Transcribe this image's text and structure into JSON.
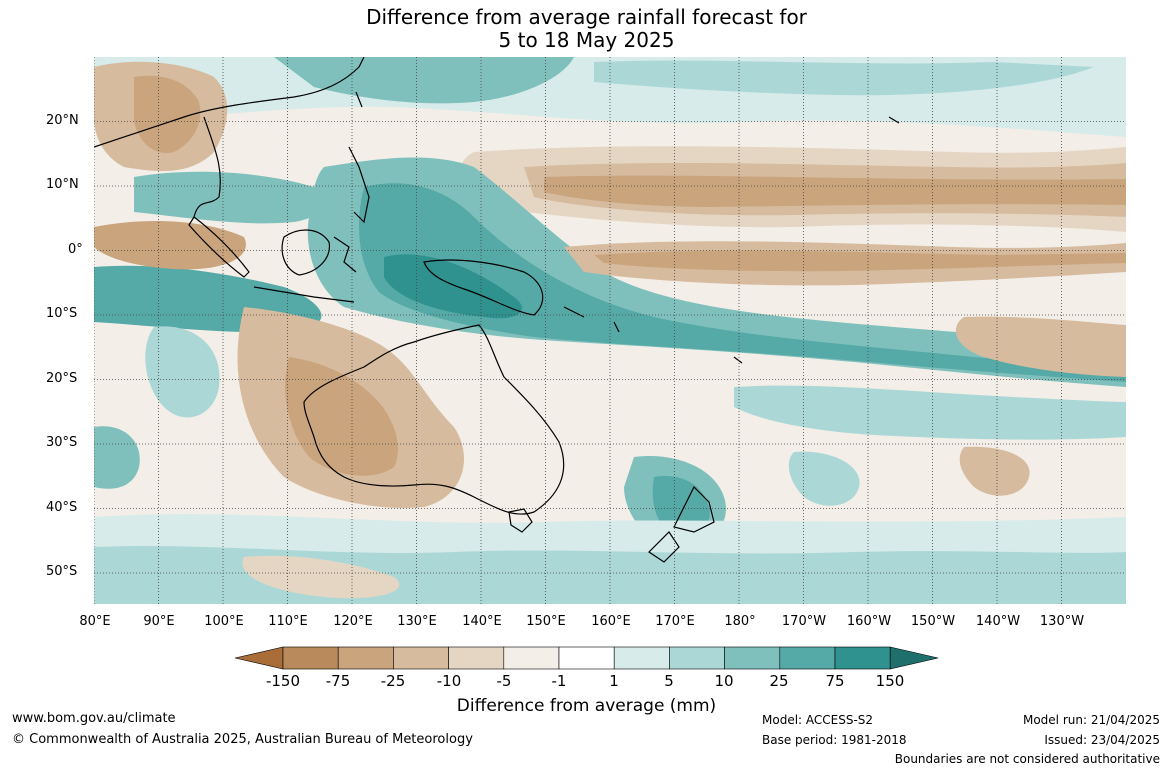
{
  "title": {
    "line1": "Difference from average rainfall forecast for",
    "line2": "5 to 18 May 2025"
  },
  "map": {
    "lat_labels": [
      "20°N",
      "10°N",
      "0°",
      "10°S",
      "20°S",
      "30°S",
      "40°S",
      "50°S"
    ],
    "lon_labels": [
      "80°E",
      "90°E",
      "100°E",
      "110°E",
      "120°E",
      "130°E",
      "140°E",
      "150°E",
      "160°E",
      "170°E",
      "180°",
      "170°W",
      "160°W",
      "150°W",
      "140°W",
      "130°W"
    ]
  },
  "legend": {
    "title": "Difference from average (mm)",
    "ticks": [
      "-150",
      "-75",
      "-25",
      "-10",
      "-5",
      "-1",
      "1",
      "5",
      "10",
      "25",
      "75",
      "150"
    ],
    "colors": [
      "#a86d39",
      "#b98a5b",
      "#c9a47d",
      "#d6bb9e",
      "#e5d6c4",
      "#f3eee8",
      "#ffffff",
      "#d6ebea",
      "#abd8d6",
      "#7fc0bd",
      "#55a9a6",
      "#2f928f",
      "#1f6f6c"
    ]
  },
  "footer": {
    "website": "www.bom.gov.au/climate",
    "copyright": "© Commonwealth of Australia 2025, Australian Bureau of Meteorology",
    "model": "Model: ACCESS-S2",
    "base_period": "Base period: 1981-2018",
    "model_run": "Model run: 21/04/2025",
    "issued": "Issued: 23/04/2025",
    "disclaimer": "Boundaries are not considered authoritative"
  }
}
